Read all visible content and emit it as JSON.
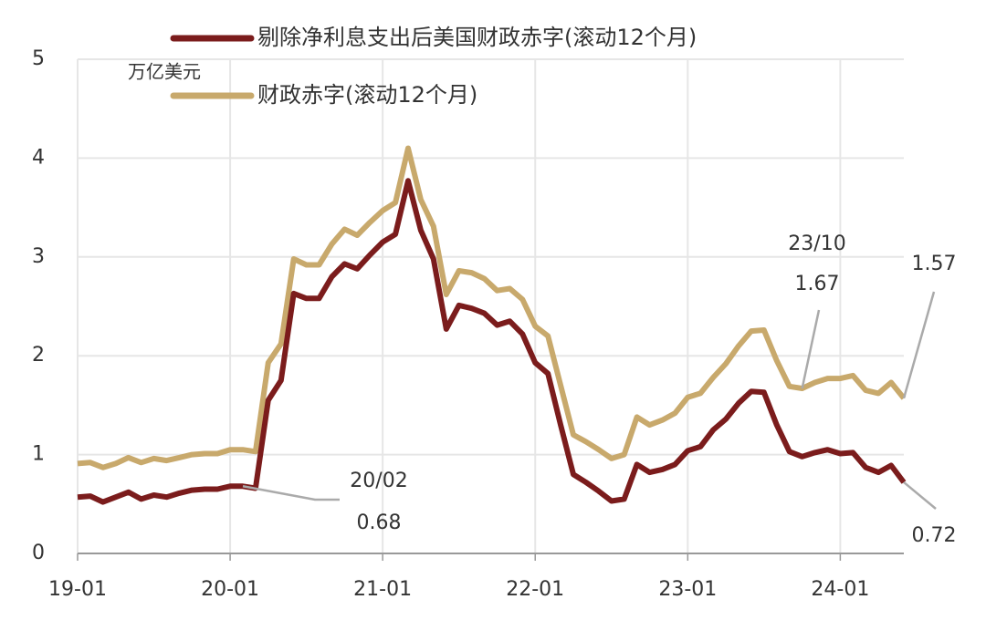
{
  "chart_data": {
    "type": "line",
    "y_label": "万亿美元",
    "x": [
      "2019-01",
      "2019-02",
      "2019-03",
      "2019-04",
      "2019-05",
      "2019-06",
      "2019-07",
      "2019-08",
      "2019-09",
      "2019-10",
      "2019-11",
      "2019-12",
      "2020-01",
      "2020-02",
      "2020-03",
      "2020-04",
      "2020-05",
      "2020-06",
      "2020-07",
      "2020-08",
      "2020-09",
      "2020-10",
      "2020-11",
      "2020-12",
      "2021-01",
      "2021-02",
      "2021-03",
      "2021-04",
      "2021-05",
      "2021-06",
      "2021-07",
      "2021-08",
      "2021-09",
      "2021-10",
      "2021-11",
      "2021-12",
      "2022-01",
      "2022-02",
      "2022-03",
      "2022-04",
      "2022-05",
      "2022-06",
      "2022-07",
      "2022-08",
      "2022-09",
      "2022-10",
      "2022-11",
      "2022-12",
      "2023-01",
      "2023-02",
      "2023-03",
      "2023-04",
      "2023-05",
      "2023-06",
      "2023-07",
      "2023-08",
      "2023-09",
      "2023-10",
      "2023-11",
      "2023-12",
      "2024-01",
      "2024-02",
      "2024-03",
      "2024-04",
      "2024-05",
      "2024-06"
    ],
    "series": [
      {
        "name": "剔除净利息支出后美国财政赤字(滚动12个月)",
        "color": "#7b1c1c",
        "values": [
          0.57,
          0.58,
          0.52,
          0.57,
          0.62,
          0.55,
          0.59,
          0.57,
          0.61,
          0.64,
          0.65,
          0.65,
          0.68,
          0.68,
          0.66,
          1.55,
          1.75,
          2.63,
          2.58,
          2.58,
          2.8,
          2.93,
          2.88,
          3.02,
          3.15,
          3.23,
          3.77,
          3.27,
          2.98,
          2.27,
          2.51,
          2.48,
          2.43,
          2.31,
          2.35,
          2.22,
          1.93,
          1.82,
          1.3,
          0.8,
          0.72,
          0.63,
          0.53,
          0.55,
          0.9,
          0.82,
          0.85,
          0.9,
          1.04,
          1.08,
          1.25,
          1.36,
          1.52,
          1.64,
          1.63,
          1.3,
          1.03,
          0.98,
          1.02,
          1.05,
          1.01,
          1.02,
          0.87,
          0.82,
          0.89,
          0.72
        ]
      },
      {
        "name": "财政赤字(滚动12个月)",
        "color": "#c8a96c",
        "values": [
          0.91,
          0.92,
          0.87,
          0.91,
          0.97,
          0.92,
          0.96,
          0.94,
          0.97,
          1.0,
          1.01,
          1.01,
          1.05,
          1.05,
          1.03,
          1.93,
          2.12,
          2.98,
          2.92,
          2.92,
          3.13,
          3.28,
          3.22,
          3.35,
          3.47,
          3.55,
          4.1,
          3.58,
          3.31,
          2.62,
          2.86,
          2.84,
          2.78,
          2.66,
          2.68,
          2.57,
          2.3,
          2.2,
          1.7,
          1.2,
          1.13,
          1.05,
          0.96,
          1.0,
          1.38,
          1.3,
          1.35,
          1.42,
          1.58,
          1.62,
          1.78,
          1.92,
          2.1,
          2.25,
          2.26,
          1.95,
          1.69,
          1.67,
          1.73,
          1.77,
          1.77,
          1.8,
          1.65,
          1.62,
          1.73,
          1.57
        ]
      }
    ],
    "annotations": [
      {
        "x": "2020-02",
        "label": "20/02"
      },
      {
        "x": "2023-10",
        "label": "23/10"
      }
    ],
    "xlim": [
      "2019-01",
      "2024-06"
    ],
    "xticks": [
      {
        "value": "2019-01",
        "label": "19-01"
      },
      {
        "value": "2020-01",
        "label": "20-01"
      },
      {
        "value": "2021-01",
        "label": "21-01"
      },
      {
        "value": "2022-01",
        "label": "22-01"
      },
      {
        "value": "2023-01",
        "label": "23-01"
      },
      {
        "value": "2024-01",
        "label": "24-01"
      }
    ],
    "ylim": [
      0,
      5
    ],
    "yticks": [
      0,
      1,
      2,
      3,
      4,
      5
    ],
    "grid": true,
    "legend": "top"
  }
}
